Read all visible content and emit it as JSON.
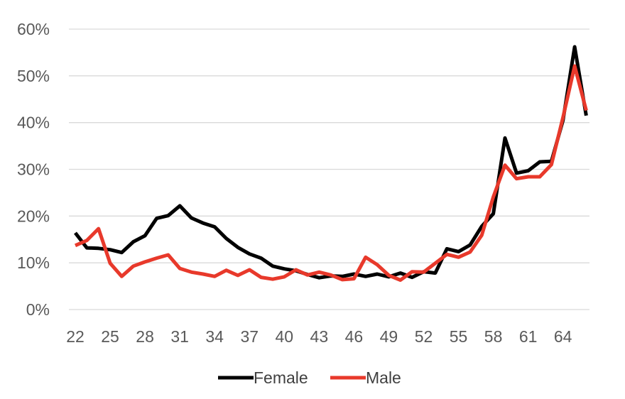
{
  "chart_data": {
    "type": "line",
    "x": [
      22,
      23,
      24,
      25,
      26,
      27,
      28,
      29,
      30,
      31,
      32,
      33,
      34,
      35,
      36,
      37,
      38,
      39,
      40,
      41,
      42,
      43,
      44,
      45,
      46,
      47,
      48,
      49,
      50,
      51,
      52,
      53,
      54,
      55,
      56,
      57,
      58,
      59,
      60,
      61,
      62,
      63,
      64,
      65,
      66
    ],
    "x_tick_labels": [
      "22",
      "25",
      "28",
      "31",
      "34",
      "37",
      "40",
      "43",
      "46",
      "49",
      "52",
      "55",
      "58",
      "61",
      "64"
    ],
    "y_tick_labels": [
      "0%",
      "10%",
      "20%",
      "30%",
      "40%",
      "50%",
      "60%"
    ],
    "ylim": [
      0,
      60
    ],
    "grid": true,
    "legend_position": "bottom",
    "series": [
      {
        "name": "Female",
        "color": "#000000",
        "values": [
          16.4,
          13.2,
          13.1,
          12.8,
          12.2,
          14.5,
          15.8,
          19.5,
          20.1,
          22.2,
          19.6,
          18.5,
          17.7,
          15.2,
          13.3,
          11.9,
          11.0,
          9.3,
          8.7,
          8.3,
          7.5,
          6.8,
          7.2,
          7.1,
          7.6,
          7.1,
          7.6,
          7.0,
          7.8,
          6.9,
          8.1,
          7.8,
          13.0,
          12.4,
          13.8,
          17.8,
          20.5,
          36.7,
          29.2,
          29.7,
          31.6,
          31.7,
          40.5,
          56.2,
          41.5
        ]
      },
      {
        "name": "Male",
        "color": "#e8392b",
        "values": [
          13.7,
          14.8,
          17.3,
          9.9,
          7.1,
          9.3,
          10.2,
          11.0,
          11.7,
          8.8,
          8.0,
          7.6,
          7.1,
          8.4,
          7.3,
          8.5,
          6.9,
          6.5,
          7.0,
          8.5,
          7.4,
          8.0,
          7.4,
          6.4,
          6.6,
          11.2,
          9.6,
          7.3,
          6.3,
          8.1,
          8.0,
          9.9,
          11.8,
          11.2,
          12.3,
          15.9,
          24.1,
          30.9,
          28.0,
          28.4,
          28.4,
          31.0,
          41.1,
          52.1,
          42.6
        ]
      }
    ]
  }
}
